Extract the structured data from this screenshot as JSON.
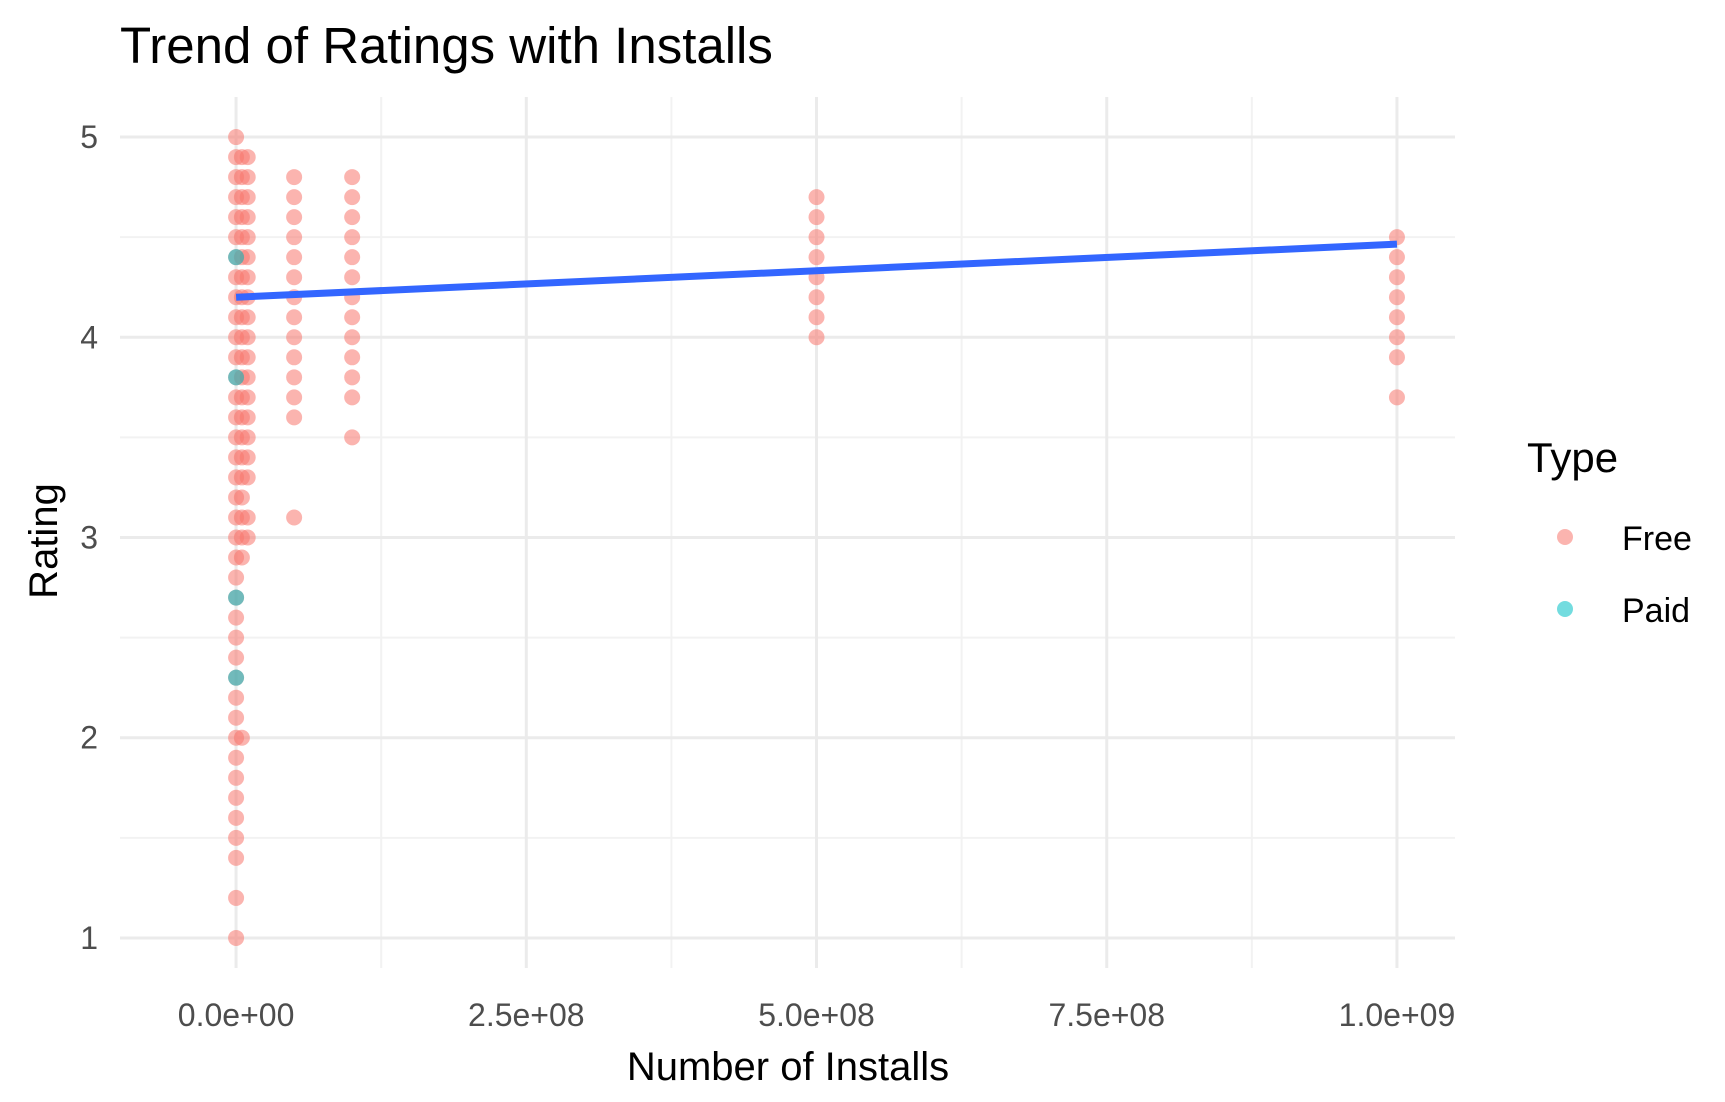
{
  "chart_data": {
    "type": "scatter",
    "title": "Trend of Ratings with Installs",
    "xlabel": "Number of Installs",
    "ylabel": "Rating",
    "xlim": [
      -100000000,
      1050000000
    ],
    "ylim": [
      0.85,
      5.2
    ],
    "x_ticks": [
      0,
      250000000,
      500000000,
      750000000,
      1000000000
    ],
    "x_tick_labels": [
      "0.0e+00",
      "2.5e+08",
      "5.0e+08",
      "7.5e+08",
      "1.0e+09"
    ],
    "y_ticks": [
      1,
      2,
      3,
      4,
      5
    ],
    "y_tick_labels": [
      "1",
      "2",
      "3",
      "4",
      "5"
    ],
    "grid": true,
    "legend": {
      "title": "Type",
      "placement": "right",
      "entries": [
        {
          "label": "Free",
          "color": "#F8766D"
        },
        {
          "label": "Paid",
          "color": "#00BFC4"
        }
      ]
    },
    "series": [
      {
        "name": "Free",
        "color": "#F8766D",
        "points": [
          {
            "x": 0,
            "y": 5.0
          },
          {
            "x": 0,
            "y": 4.9
          },
          {
            "x": 0,
            "y": 4.8
          },
          {
            "x": 0,
            "y": 4.7
          },
          {
            "x": 0,
            "y": 4.6
          },
          {
            "x": 0,
            "y": 4.5
          },
          {
            "x": 0,
            "y": 4.4
          },
          {
            "x": 0,
            "y": 4.3
          },
          {
            "x": 0,
            "y": 4.2
          },
          {
            "x": 0,
            "y": 4.1
          },
          {
            "x": 0,
            "y": 4.0
          },
          {
            "x": 0,
            "y": 3.9
          },
          {
            "x": 0,
            "y": 3.8
          },
          {
            "x": 0,
            "y": 3.7
          },
          {
            "x": 0,
            "y": 3.6
          },
          {
            "x": 0,
            "y": 3.5
          },
          {
            "x": 0,
            "y": 3.4
          },
          {
            "x": 0,
            "y": 3.3
          },
          {
            "x": 0,
            "y": 3.2
          },
          {
            "x": 0,
            "y": 3.1
          },
          {
            "x": 0,
            "y": 3.0
          },
          {
            "x": 0,
            "y": 2.9
          },
          {
            "x": 0,
            "y": 2.8
          },
          {
            "x": 0,
            "y": 2.7
          },
          {
            "x": 0,
            "y": 2.6
          },
          {
            "x": 0,
            "y": 2.5
          },
          {
            "x": 0,
            "y": 2.4
          },
          {
            "x": 0,
            "y": 2.3
          },
          {
            "x": 0,
            "y": 2.2
          },
          {
            "x": 0,
            "y": 2.1
          },
          {
            "x": 0,
            "y": 2.0
          },
          {
            "x": 0,
            "y": 1.9
          },
          {
            "x": 0,
            "y": 1.8
          },
          {
            "x": 0,
            "y": 1.7
          },
          {
            "x": 0,
            "y": 1.6
          },
          {
            "x": 0,
            "y": 1.5
          },
          {
            "x": 0,
            "y": 1.4
          },
          {
            "x": 0,
            "y": 1.2
          },
          {
            "x": 0,
            "y": 1.0
          },
          {
            "x": 5000000,
            "y": 4.9
          },
          {
            "x": 5000000,
            "y": 4.8
          },
          {
            "x": 5000000,
            "y": 4.7
          },
          {
            "x": 5000000,
            "y": 4.6
          },
          {
            "x": 5000000,
            "y": 4.5
          },
          {
            "x": 5000000,
            "y": 4.4
          },
          {
            "x": 5000000,
            "y": 4.3
          },
          {
            "x": 5000000,
            "y": 4.2
          },
          {
            "x": 5000000,
            "y": 4.1
          },
          {
            "x": 5000000,
            "y": 4.0
          },
          {
            "x": 5000000,
            "y": 3.9
          },
          {
            "x": 5000000,
            "y": 3.8
          },
          {
            "x": 5000000,
            "y": 3.7
          },
          {
            "x": 5000000,
            "y": 3.6
          },
          {
            "x": 5000000,
            "y": 3.5
          },
          {
            "x": 5000000,
            "y": 3.4
          },
          {
            "x": 5000000,
            "y": 3.3
          },
          {
            "x": 5000000,
            "y": 3.2
          },
          {
            "x": 5000000,
            "y": 3.1
          },
          {
            "x": 5000000,
            "y": 3.0
          },
          {
            "x": 5000000,
            "y": 2.9
          },
          {
            "x": 5000000,
            "y": 2.0
          },
          {
            "x": 10000000,
            "y": 4.9
          },
          {
            "x": 10000000,
            "y": 4.8
          },
          {
            "x": 10000000,
            "y": 4.7
          },
          {
            "x": 10000000,
            "y": 4.6
          },
          {
            "x": 10000000,
            "y": 4.5
          },
          {
            "x": 10000000,
            "y": 4.4
          },
          {
            "x": 10000000,
            "y": 4.3
          },
          {
            "x": 10000000,
            "y": 4.2
          },
          {
            "x": 10000000,
            "y": 4.1
          },
          {
            "x": 10000000,
            "y": 4.0
          },
          {
            "x": 10000000,
            "y": 3.9
          },
          {
            "x": 10000000,
            "y": 3.8
          },
          {
            "x": 10000000,
            "y": 3.7
          },
          {
            "x": 10000000,
            "y": 3.6
          },
          {
            "x": 10000000,
            "y": 3.5
          },
          {
            "x": 10000000,
            "y": 3.4
          },
          {
            "x": 10000000,
            "y": 3.3
          },
          {
            "x": 10000000,
            "y": 3.1
          },
          {
            "x": 10000000,
            "y": 3.0
          },
          {
            "x": 50000000,
            "y": 4.8
          },
          {
            "x": 50000000,
            "y": 4.7
          },
          {
            "x": 50000000,
            "y": 4.6
          },
          {
            "x": 50000000,
            "y": 4.5
          },
          {
            "x": 50000000,
            "y": 4.4
          },
          {
            "x": 50000000,
            "y": 4.3
          },
          {
            "x": 50000000,
            "y": 4.2
          },
          {
            "x": 50000000,
            "y": 4.1
          },
          {
            "x": 50000000,
            "y": 4.0
          },
          {
            "x": 50000000,
            "y": 3.9
          },
          {
            "x": 50000000,
            "y": 3.8
          },
          {
            "x": 50000000,
            "y": 3.7
          },
          {
            "x": 50000000,
            "y": 3.6
          },
          {
            "x": 50000000,
            "y": 3.1
          },
          {
            "x": 100000000,
            "y": 4.8
          },
          {
            "x": 100000000,
            "y": 4.7
          },
          {
            "x": 100000000,
            "y": 4.6
          },
          {
            "x": 100000000,
            "y": 4.5
          },
          {
            "x": 100000000,
            "y": 4.4
          },
          {
            "x": 100000000,
            "y": 4.3
          },
          {
            "x": 100000000,
            "y": 4.2
          },
          {
            "x": 100000000,
            "y": 4.1
          },
          {
            "x": 100000000,
            "y": 4.0
          },
          {
            "x": 100000000,
            "y": 3.9
          },
          {
            "x": 100000000,
            "y": 3.8
          },
          {
            "x": 100000000,
            "y": 3.7
          },
          {
            "x": 100000000,
            "y": 3.5
          },
          {
            "x": 500000000,
            "y": 4.7
          },
          {
            "x": 500000000,
            "y": 4.6
          },
          {
            "x": 500000000,
            "y": 4.5
          },
          {
            "x": 500000000,
            "y": 4.4
          },
          {
            "x": 500000000,
            "y": 4.3
          },
          {
            "x": 500000000,
            "y": 4.2
          },
          {
            "x": 500000000,
            "y": 4.1
          },
          {
            "x": 500000000,
            "y": 4.0
          },
          {
            "x": 1000000000,
            "y": 4.5
          },
          {
            "x": 1000000000,
            "y": 4.4
          },
          {
            "x": 1000000000,
            "y": 4.3
          },
          {
            "x": 1000000000,
            "y": 4.2
          },
          {
            "x": 1000000000,
            "y": 4.1
          },
          {
            "x": 1000000000,
            "y": 4.0
          },
          {
            "x": 1000000000,
            "y": 3.9
          },
          {
            "x": 1000000000,
            "y": 3.7
          }
        ]
      },
      {
        "name": "Paid",
        "color": "#00BFC4",
        "points": [
          {
            "x": 0,
            "y": 4.4
          },
          {
            "x": 0,
            "y": 3.8
          },
          {
            "x": 0,
            "y": 2.7
          },
          {
            "x": 0,
            "y": 2.3
          }
        ]
      }
    ],
    "trend_line": {
      "color": "#3366FF",
      "x": [
        0,
        1000000000
      ],
      "y": [
        4.2,
        4.465
      ]
    }
  }
}
